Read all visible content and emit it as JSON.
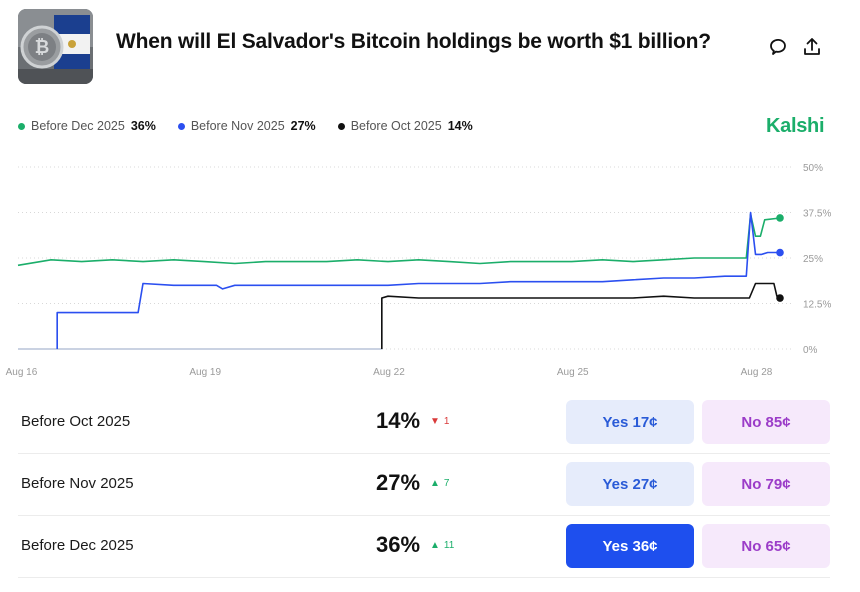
{
  "header": {
    "title": "When will El Salvador's Bitcoin holdings be worth $1 billion?",
    "brand": "Kalshi"
  },
  "legend": [
    {
      "label": "Before Dec 2025",
      "value": "36%",
      "color": "#1bae6a"
    },
    {
      "label": "Before Nov 2025",
      "value": "27%",
      "color": "#2b4ff0"
    },
    {
      "label": "Before Oct 2025",
      "value": "14%",
      "color": "#111111"
    }
  ],
  "chart_data": {
    "type": "line",
    "x_tick_labels": [
      "Aug 16",
      "Aug 19",
      "Aug 22",
      "Aug 25",
      "Aug 28"
    ],
    "y_tick_labels": [
      "50%",
      "37.5%",
      "25%",
      "12.5%",
      "0%"
    ],
    "ylim": [
      0,
      50
    ],
    "grid": true,
    "legend_position": "top-left",
    "series": [
      {
        "name": "Before Dec 2025",
        "color": "#1bae6a",
        "points": [
          [
            15.96,
            23
          ],
          [
            16.5,
            24.5
          ],
          [
            17,
            24
          ],
          [
            17.5,
            24.5
          ],
          [
            18,
            24
          ],
          [
            18.5,
            24.5
          ],
          [
            19,
            24
          ],
          [
            19.5,
            23.5
          ],
          [
            20,
            24
          ],
          [
            20.5,
            24
          ],
          [
            21,
            24
          ],
          [
            21.5,
            24.5
          ],
          [
            22,
            24
          ],
          [
            22.5,
            24.5
          ],
          [
            23,
            24
          ],
          [
            23.5,
            23.5
          ],
          [
            24,
            24
          ],
          [
            24.5,
            24
          ],
          [
            25,
            24
          ],
          [
            25.5,
            24.5
          ],
          [
            26,
            24
          ],
          [
            26.5,
            24.5
          ],
          [
            27,
            25
          ],
          [
            27.5,
            25
          ],
          [
            27.85,
            25
          ],
          [
            27.92,
            37
          ],
          [
            28.0,
            31
          ],
          [
            28.08,
            31
          ],
          [
            28.15,
            35.5
          ],
          [
            28.4,
            36
          ]
        ]
      },
      {
        "name": "Before Nov 2025",
        "color": "#2b4ff0",
        "points": [
          [
            16.6,
            0
          ],
          [
            16.6,
            10
          ],
          [
            17.0,
            10
          ],
          [
            17.5,
            10
          ],
          [
            17.92,
            10
          ],
          [
            18.0,
            18
          ],
          [
            18.5,
            17.5
          ],
          [
            19,
            17.5
          ],
          [
            19.2,
            17.5
          ],
          [
            19.3,
            16.5
          ],
          [
            19.5,
            17.5
          ],
          [
            20,
            17.5
          ],
          [
            20.5,
            17.5
          ],
          [
            21,
            17.5
          ],
          [
            21.5,
            17.5
          ],
          [
            22,
            17.5
          ],
          [
            22.5,
            18
          ],
          [
            23,
            18
          ],
          [
            23.5,
            18
          ],
          [
            24,
            18.5
          ],
          [
            24.5,
            18.5
          ],
          [
            25,
            18.5
          ],
          [
            25.5,
            18.5
          ],
          [
            26,
            19
          ],
          [
            26.5,
            19.5
          ],
          [
            27,
            19.5
          ],
          [
            27.5,
            20
          ],
          [
            27.85,
            20
          ],
          [
            27.92,
            37.5
          ],
          [
            28.0,
            26
          ],
          [
            28.1,
            26
          ],
          [
            28.2,
            26.5
          ],
          [
            28.4,
            26.5
          ]
        ]
      },
      {
        "name": "Before Oct 2025",
        "color": "#111111",
        "points": [
          [
            21.9,
            0
          ],
          [
            21.9,
            14
          ],
          [
            22.0,
            14.5
          ],
          [
            22.5,
            14
          ],
          [
            23,
            14
          ],
          [
            23.5,
            14
          ],
          [
            24,
            14
          ],
          [
            24.5,
            14
          ],
          [
            25,
            14
          ],
          [
            25.5,
            14
          ],
          [
            26,
            14
          ],
          [
            26.5,
            14.5
          ],
          [
            27,
            14
          ],
          [
            27.5,
            14
          ],
          [
            27.9,
            14
          ],
          [
            28.0,
            18
          ],
          [
            28.2,
            18
          ],
          [
            28.3,
            18
          ],
          [
            28.35,
            14.5
          ],
          [
            28.4,
            14
          ]
        ]
      },
      {
        "name": "",
        "color": "#b8c4d8",
        "points": [
          [
            15.96,
            0
          ],
          [
            16.6,
            0
          ],
          [
            16.6,
            10
          ]
        ]
      },
      {
        "name": "",
        "color": "#b8c4d8",
        "points": [
          [
            16.6,
            0
          ],
          [
            21.9,
            0
          ],
          [
            21.9,
            14
          ]
        ]
      }
    ]
  },
  "rows": [
    {
      "label": "Before Oct 2025",
      "pct": "14%",
      "change": "1",
      "dir": "down",
      "yes": "Yes 17¢",
      "no": "No 85¢",
      "active": false
    },
    {
      "label": "Before Nov 2025",
      "pct": "27%",
      "change": "7",
      "dir": "up",
      "yes": "Yes 27¢",
      "no": "No 79¢",
      "active": false
    },
    {
      "label": "Before Dec 2025",
      "pct": "36%",
      "change": "11",
      "dir": "up",
      "yes": "Yes 36¢",
      "no": "No 65¢",
      "active": true
    }
  ]
}
